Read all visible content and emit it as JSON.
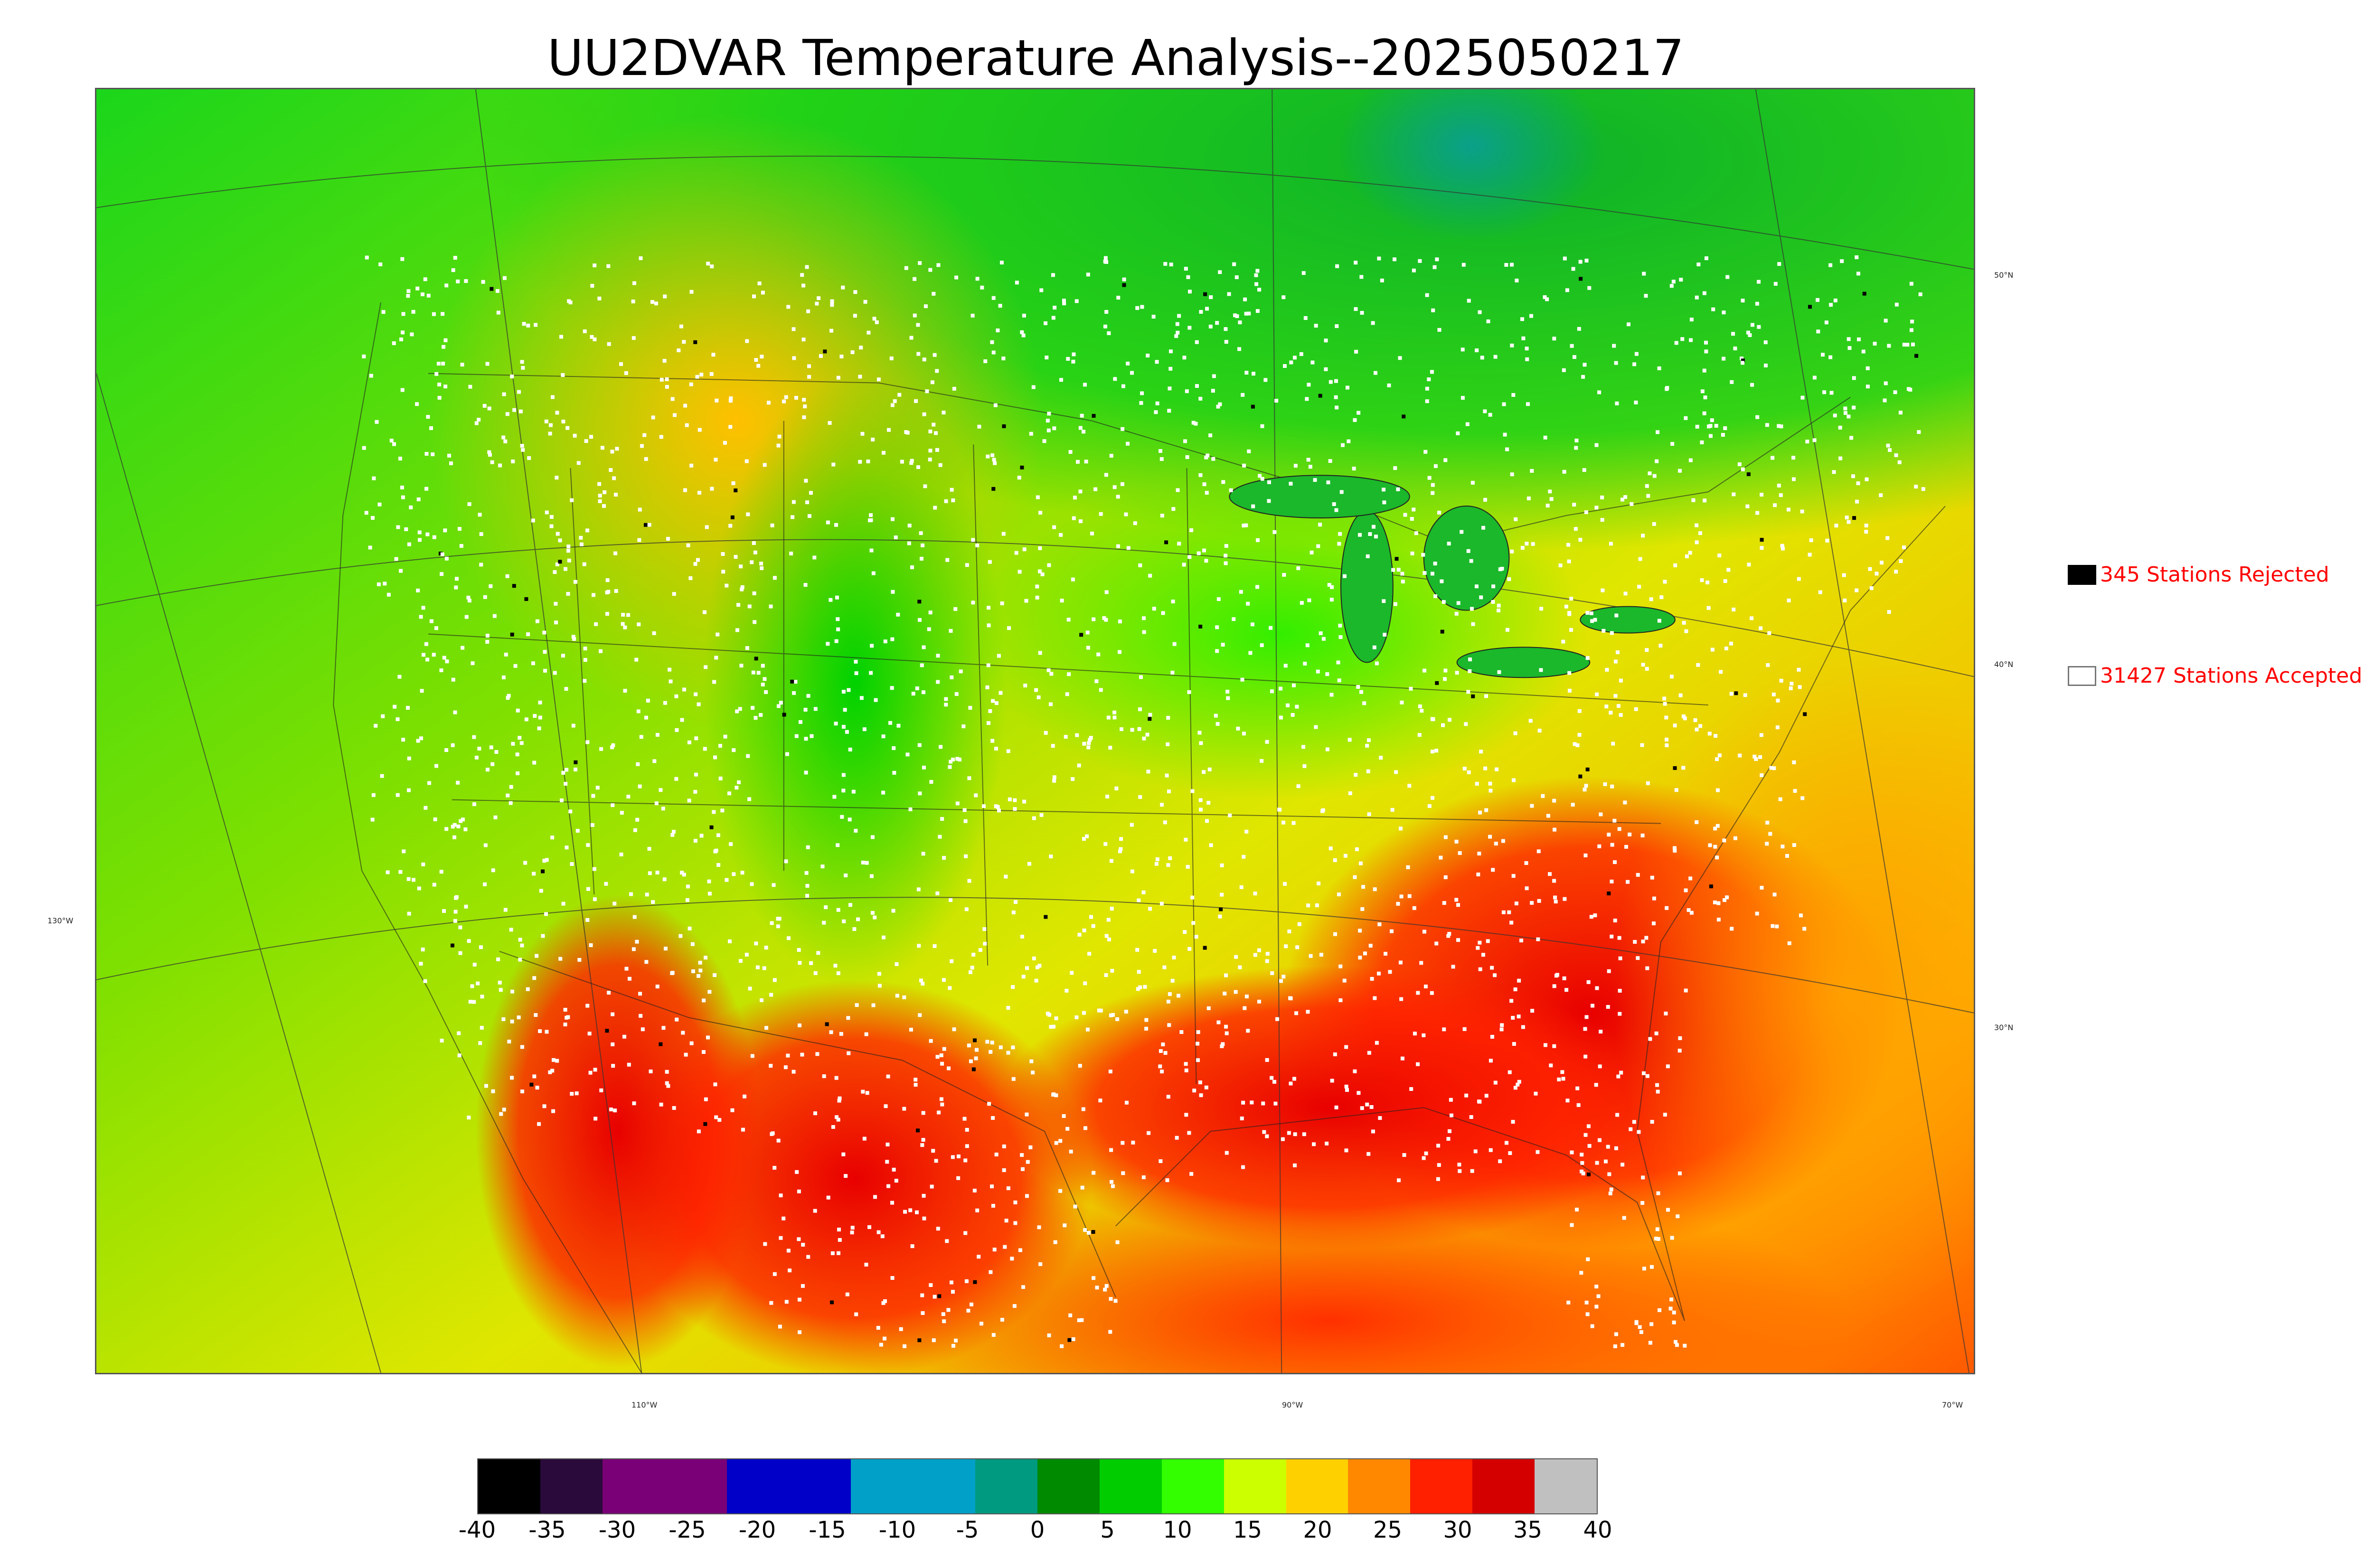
{
  "title": "UU2DVAR Temperature Analysis--2025050217",
  "legend": [
    {
      "label": "345 Stations Rejected",
      "swatch_color": "#000000"
    },
    {
      "label": "31427 Stations Accepted",
      "swatch_color": "#ffffff"
    }
  ],
  "latitude_labels": [
    "50°N",
    "40°N",
    "30°N"
  ],
  "longitude_labels": [
    "130°W",
    "110°W",
    "90°W",
    "70°W"
  ],
  "colorbar": {
    "min": -40,
    "max": 40,
    "ticks": [
      "-40",
      "-35",
      "-30",
      "-25",
      "-20",
      "-15",
      "-10",
      "-5",
      "0",
      "5",
      "10",
      "15",
      "20",
      "25",
      "30",
      "35",
      "40"
    ],
    "colors": [
      "#000000",
      "#2a0a3a",
      "#7a0077",
      "#7a0077",
      "#0000c8",
      "#0000c8",
      "#00a0c8",
      "#00a0c8",
      "#009a80",
      "#008a00",
      "#00cc00",
      "#33ff00",
      "#ccff00",
      "#ffd000",
      "#ff8800",
      "#ff2000",
      "#d40000",
      "#c0c0c0"
    ]
  },
  "colors": {
    "rejected": "#000000",
    "accepted": "#ffffff",
    "legend_text": "#ff0000",
    "cold_ocean": "#1ab04a",
    "warm_gulf": "#ff3a00"
  }
}
